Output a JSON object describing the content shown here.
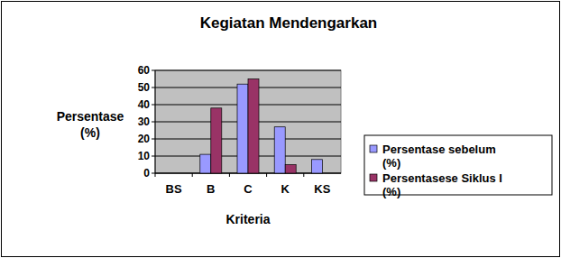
{
  "chart_data": {
    "type": "bar",
    "title": "Kegiatan Mendengarkan",
    "categories": [
      "BS",
      "B",
      "C",
      "K",
      "KS"
    ],
    "series": [
      {
        "name": "Persentase sebelum (%)",
        "color": "#9999ff",
        "values": [
          0,
          11,
          52,
          27,
          8
        ]
      },
      {
        "name": "Persentasese Siklus I (%)",
        "color": "#993366",
        "values": [
          0,
          38,
          55,
          5,
          0
        ]
      }
    ],
    "x_label": "Kriteria",
    "y_label": "Persentase (%)",
    "ylim": [
      0,
      60
    ],
    "yticks": [
      0,
      10,
      20,
      30,
      40,
      50,
      60
    ],
    "grid": true,
    "legend": "right"
  }
}
